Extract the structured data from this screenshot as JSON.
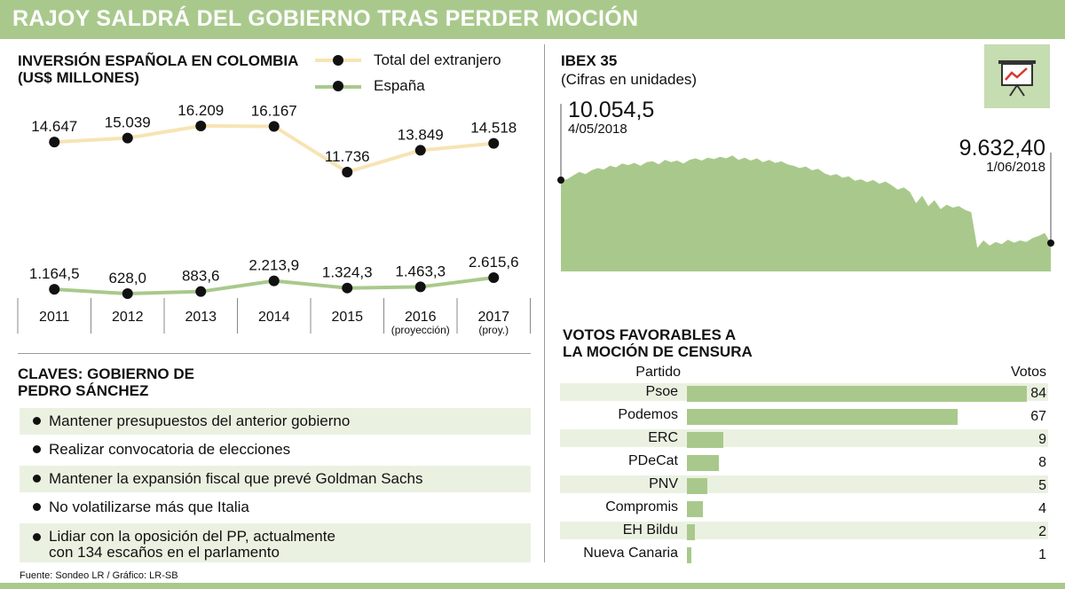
{
  "title": "RAJOY SALDRÁ DEL GOBIERNO TRAS PERDER MOCIÓN",
  "colors": {
    "green": "#a9c98c",
    "cream": "#f7e4b4",
    "light_green": "#eaf1e1",
    "icon_bg": "#c6dcb1"
  },
  "investment": {
    "title_line1": "INVERSIÓN ESPAÑOLA EN COLOMBIA",
    "title_line2": "(US$ MILLONES)",
    "legend": {
      "total": "Total del extranjero",
      "espana": "España"
    }
  },
  "claves": {
    "title_line1": "CLAVES: GOBIERNO DE",
    "title_line2": "PEDRO SÁNCHEZ",
    "items": [
      {
        "text": "Mantener presupuestos del anterior gobierno"
      },
      {
        "text": "Realizar convocatoria de elecciones"
      },
      {
        "text": "Mantener la expansión fiscal que prevé Goldman Sachs"
      },
      {
        "text": "No volatilizarse más que Italia"
      },
      {
        "line1": "Lidiar con la oposición del PP, actualmente",
        "line2": "con 134 escaños en el parlamento"
      }
    ]
  },
  "ibex": {
    "title": "IBEX 35",
    "subtitle": "(Cifras en unidades)",
    "start_value": "10.054,5",
    "start_date": "4/05/2018",
    "end_value": "9.632,40",
    "end_date": "1/06/2018",
    "icon": "presentation-chart-icon"
  },
  "votes": {
    "title_line1": "VOTOS FAVORABLES A",
    "title_line2": "LA MOCIÓN DE CENSURA",
    "col_party": "Partido",
    "col_votes": "Votos"
  },
  "footer": "Fuente: Sondeo LR / Gráfico: LR-SB",
  "chart_data": [
    {
      "type": "line",
      "categories": [
        "2011",
        "2012",
        "2013",
        "2014",
        "2015",
        "2016",
        "2017"
      ],
      "category_notes": [
        "",
        "",
        "",
        "",
        "",
        "(proyección)",
        "(proy.)"
      ],
      "series": [
        {
          "name": "Total del extranjero",
          "values": [
            14647,
            15039,
            16209,
            16167,
            11736,
            13849,
            14518
          ],
          "labels": [
            "14.647",
            "15.039",
            "16.209",
            "16.167",
            "11.736",
            "13.849",
            "14.518"
          ]
        },
        {
          "name": "España",
          "values": [
            1164.5,
            628.0,
            883.6,
            2213.9,
            1324.3,
            1463.3,
            2615.6
          ],
          "labels": [
            "1.164,5",
            "628,0",
            "883,6",
            "2.213,9",
            "1.324,3",
            "1.463,3",
            "2.615,6"
          ]
        }
      ]
    },
    {
      "type": "area",
      "series": [
        {
          "values": [
            10054.5,
            10060,
            10085,
            10110,
            10095,
            10120,
            10135,
            10125,
            10150,
            10140,
            10165,
            10155,
            10170,
            10150,
            10175,
            10180,
            10160,
            10190,
            10175,
            10185,
            10165,
            10190,
            10200,
            10185,
            10205,
            10195,
            10210,
            10200,
            10220,
            10190,
            10205,
            10185,
            10200,
            10175,
            10190,
            10170,
            10180,
            10160,
            10150,
            10135,
            10145,
            10120,
            10130,
            10100,
            10085,
            10095,
            10070,
            10080,
            10050,
            10060,
            10040,
            10055,
            10030,
            10045,
            10020,
            9990,
            10005,
            9975,
            9900,
            9950,
            9880,
            9920,
            9860,
            9890,
            9870,
            9880,
            9855,
            9840,
            9600,
            9650,
            9615,
            9640,
            9625,
            9655,
            9635,
            9650,
            9640,
            9665,
            9680,
            9700,
            9632.4
          ]
        }
      ],
      "ylim": [
        9200,
        10300
      ]
    },
    {
      "type": "bar",
      "categories": [
        "Psoe",
        "Podemos",
        "ERC",
        "PDeCat",
        "PNV",
        "Compromis",
        "EH Bildu",
        "Nueva Canaria"
      ],
      "values": [
        84,
        67,
        9,
        8,
        5,
        4,
        2,
        1
      ]
    }
  ]
}
